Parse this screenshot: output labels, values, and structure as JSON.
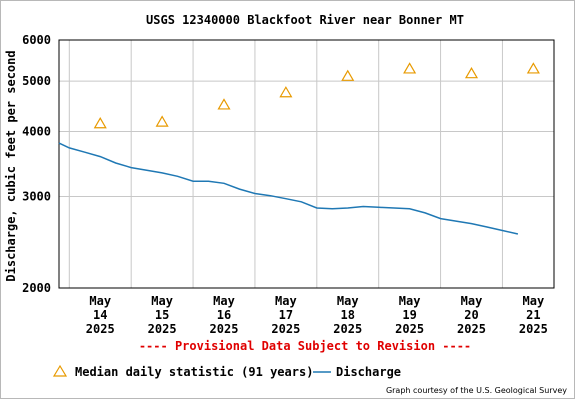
{
  "chart_data": {
    "type": "line",
    "title": "USGS 12340000 Blackfoot River near Bonner MT",
    "ylabel": "Discharge, cubic feet per second",
    "xlabel": "",
    "y_scale": "log",
    "ylim": [
      2000,
      6000
    ],
    "y_ticks": [
      "2000",
      "3000",
      "4000",
      "5000",
      "6000"
    ],
    "x_ticks": [
      {
        "line1": "May",
        "line2": "14",
        "line3": "2025"
      },
      {
        "line1": "May",
        "line2": "15",
        "line3": "2025"
      },
      {
        "line1": "May",
        "line2": "16",
        "line3": "2025"
      },
      {
        "line1": "May",
        "line2": "17",
        "line3": "2025"
      },
      {
        "line1": "May",
        "line2": "18",
        "line3": "2025"
      },
      {
        "line1": "May",
        "line2": "19",
        "line3": "2025"
      },
      {
        "line1": "May",
        "line2": "20",
        "line3": "2025"
      },
      {
        "line1": "May",
        "line2": "21",
        "line3": "2025"
      }
    ],
    "xlim": [
      "2025-05-13T20:00",
      "2025-05-21T20:00"
    ],
    "grid": true,
    "legend_position": "bottom",
    "annotation": "---- Provisional Data Subject to Revision ----",
    "credit": "Graph courtesy of the U.S. Geological Survey",
    "series": [
      {
        "name": "Median daily statistic (91 years)",
        "type": "scatter",
        "marker": "triangle",
        "color": "#e89a00",
        "x": [
          "2025-05-14T12:00",
          "2025-05-15T12:00",
          "2025-05-16T12:00",
          "2025-05-17T12:00",
          "2025-05-18T12:00",
          "2025-05-19T12:00",
          "2025-05-20T12:00",
          "2025-05-21T12:00"
        ],
        "y": [
          4150,
          4180,
          4510,
          4760,
          5120,
          5290,
          5180,
          5290
        ]
      },
      {
        "name": "Discharge",
        "type": "line",
        "color": "#1f78b4",
        "x": [
          "2025-05-13T20:00",
          "2025-05-14T00:00",
          "2025-05-14T06:00",
          "2025-05-14T12:00",
          "2025-05-14T18:00",
          "2025-05-15T00:00",
          "2025-05-15T06:00",
          "2025-05-15T12:00",
          "2025-05-15T18:00",
          "2025-05-16T00:00",
          "2025-05-16T06:00",
          "2025-05-16T12:00",
          "2025-05-16T18:00",
          "2025-05-17T00:00",
          "2025-05-17T06:00",
          "2025-05-17T12:00",
          "2025-05-17T18:00",
          "2025-05-18T00:00",
          "2025-05-18T06:00",
          "2025-05-18T12:00",
          "2025-05-18T18:00",
          "2025-05-19T00:00",
          "2025-05-19T06:00",
          "2025-05-19T12:00",
          "2025-05-19T18:00",
          "2025-05-20T00:00",
          "2025-05-20T06:00",
          "2025-05-20T12:00",
          "2025-05-20T18:00",
          "2025-05-21T00:00",
          "2025-05-21T06:00"
        ],
        "y": [
          3800,
          3720,
          3650,
          3580,
          3480,
          3410,
          3370,
          3330,
          3280,
          3210,
          3210,
          3180,
          3100,
          3040,
          3010,
          2970,
          2930,
          2850,
          2840,
          2850,
          2870,
          2860,
          2850,
          2840,
          2790,
          2720,
          2690,
          2660,
          2620,
          2580,
          2540
        ]
      }
    ]
  }
}
